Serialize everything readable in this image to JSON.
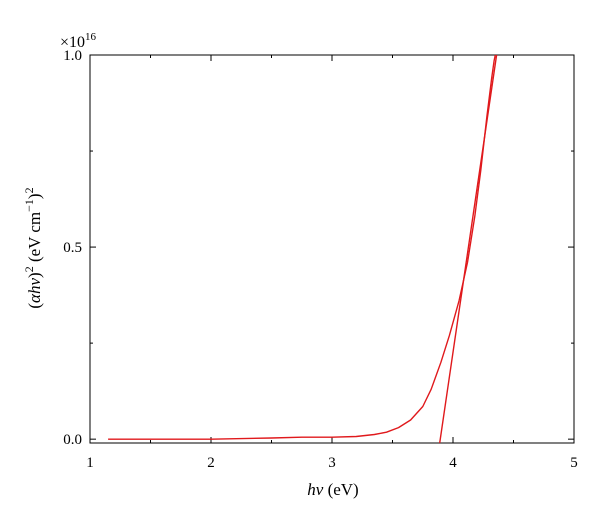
{
  "chart_data": {
    "type": "line",
    "title": "",
    "xlabel": {
      "var": "hν",
      "unit": " (eV)"
    },
    "ylabel": {
      "open": "(",
      "var": "αhν",
      "close": ")",
      "sq": "2",
      "unit_open": " (eV cm",
      "unit_exp": "−1",
      "unit_close": ")",
      "unit_sq": "2"
    },
    "y_multiplier": {
      "base": "×10",
      "exp": "16"
    },
    "xlim": [
      1,
      5
    ],
    "ylim": [
      -0.01,
      1.0
    ],
    "xticks": [
      1,
      2,
      3,
      4,
      5
    ],
    "xtick_labels": [
      "1",
      "2",
      "3",
      "4",
      "5"
    ],
    "yticks": [
      0.0,
      0.5,
      1.0
    ],
    "ytick_labels": [
      "0.0",
      "0.5",
      "1.0"
    ],
    "grid": false,
    "color": "#e0191c",
    "series": [
      {
        "kind": "data",
        "points": [
          [
            1.15,
            0.0
          ],
          [
            1.5,
            0.0
          ],
          [
            2.0,
            0.0
          ],
          [
            2.5,
            0.003
          ],
          [
            2.75,
            0.005
          ],
          [
            3.0,
            0.005
          ],
          [
            3.2,
            0.007
          ],
          [
            3.35,
            0.012
          ],
          [
            3.45,
            0.018
          ],
          [
            3.55,
            0.03
          ],
          [
            3.65,
            0.05
          ],
          [
            3.75,
            0.085
          ],
          [
            3.82,
            0.13
          ],
          [
            3.9,
            0.2
          ],
          [
            3.97,
            0.27
          ],
          [
            4.05,
            0.36
          ],
          [
            4.12,
            0.46
          ],
          [
            4.18,
            0.58
          ],
          [
            4.23,
            0.7
          ],
          [
            4.28,
            0.84
          ],
          [
            4.32,
            0.94
          ],
          [
            4.34,
            0.985
          ],
          [
            4.35,
            1.0
          ]
        ]
      },
      {
        "kind": "linear-fit",
        "points": [
          [
            3.89,
            -0.01
          ],
          [
            4.36,
            1.0
          ]
        ]
      }
    ]
  }
}
